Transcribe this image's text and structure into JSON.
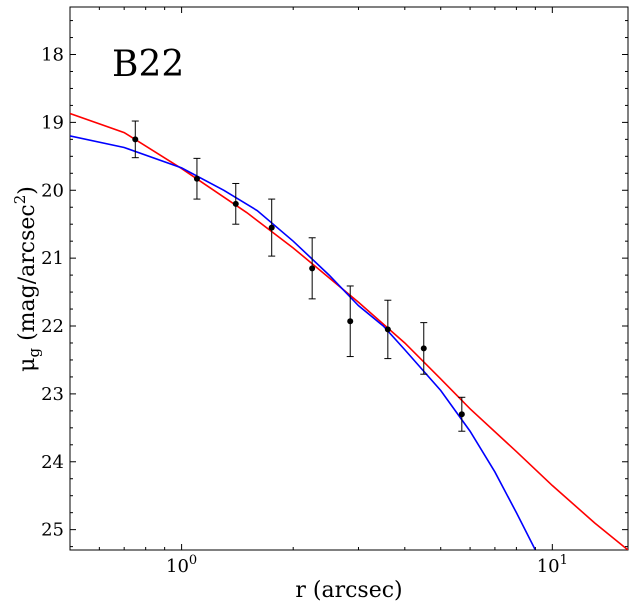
{
  "chart_data": {
    "type": "scatter",
    "annotation": "B22",
    "xlabel": "r (arcsec)",
    "ylabel_main": "μ",
    "ylabel_sub": "g",
    "ylabel_rest": " (mag/arcsec",
    "ylabel_sup": "2",
    "ylabel_close": ")",
    "x_scale": "log",
    "xlim": [
      0.5,
      16
    ],
    "ylim": [
      25.3,
      17.3
    ],
    "y_inverted": true,
    "grid": false,
    "x_ticks": [
      {
        "value": 1,
        "base": "10",
        "exp": "0"
      },
      {
        "value": 10,
        "base": "10",
        "exp": "1"
      }
    ],
    "y_ticks": [
      {
        "value": 18,
        "label": "18"
      },
      {
        "value": 19,
        "label": "19"
      },
      {
        "value": 20,
        "label": "20"
      },
      {
        "value": 21,
        "label": "21"
      },
      {
        "value": 22,
        "label": "22"
      },
      {
        "value": 23,
        "label": "23"
      },
      {
        "value": 24,
        "label": "24"
      },
      {
        "value": 25,
        "label": "25"
      }
    ],
    "points": [
      {
        "x": 0.75,
        "y": 19.25,
        "err": 0.27
      },
      {
        "x": 1.1,
        "y": 19.83,
        "err": 0.3
      },
      {
        "x": 1.4,
        "y": 20.2,
        "err": 0.3
      },
      {
        "x": 1.75,
        "y": 20.55,
        "err": 0.42
      },
      {
        "x": 2.25,
        "y": 21.15,
        "err": 0.45
      },
      {
        "x": 2.85,
        "y": 21.93,
        "err": 0.52
      },
      {
        "x": 3.6,
        "y": 22.05,
        "err": 0.43
      },
      {
        "x": 4.5,
        "y": 22.33,
        "err": 0.38
      },
      {
        "x": 5.7,
        "y": 23.3,
        "err": 0.25
      }
    ],
    "series": [
      {
        "color": "#ff0000",
        "points": [
          [
            0.5,
            18.87
          ],
          [
            0.7,
            19.15
          ],
          [
            1.0,
            19.68
          ],
          [
            1.5,
            20.33
          ],
          [
            2.0,
            20.85
          ],
          [
            3.0,
            21.65
          ],
          [
            4.0,
            22.25
          ],
          [
            5.0,
            22.78
          ],
          [
            6.0,
            23.22
          ],
          [
            8.0,
            23.85
          ],
          [
            10.0,
            24.35
          ],
          [
            13.0,
            24.9
          ],
          [
            16.0,
            25.3
          ]
        ]
      },
      {
        "color": "#0000ff",
        "points": [
          [
            0.5,
            19.2
          ],
          [
            0.7,
            19.37
          ],
          [
            1.0,
            19.67
          ],
          [
            1.3,
            20.0
          ],
          [
            1.6,
            20.3
          ],
          [
            2.0,
            20.75
          ],
          [
            2.5,
            21.25
          ],
          [
            3.0,
            21.7
          ],
          [
            3.5,
            22.0
          ],
          [
            4.0,
            22.35
          ],
          [
            5.0,
            22.95
          ],
          [
            6.0,
            23.55
          ],
          [
            7.0,
            24.15
          ],
          [
            8.0,
            24.75
          ],
          [
            9.0,
            25.3
          ]
        ]
      }
    ],
    "marker_color": "#000000"
  }
}
